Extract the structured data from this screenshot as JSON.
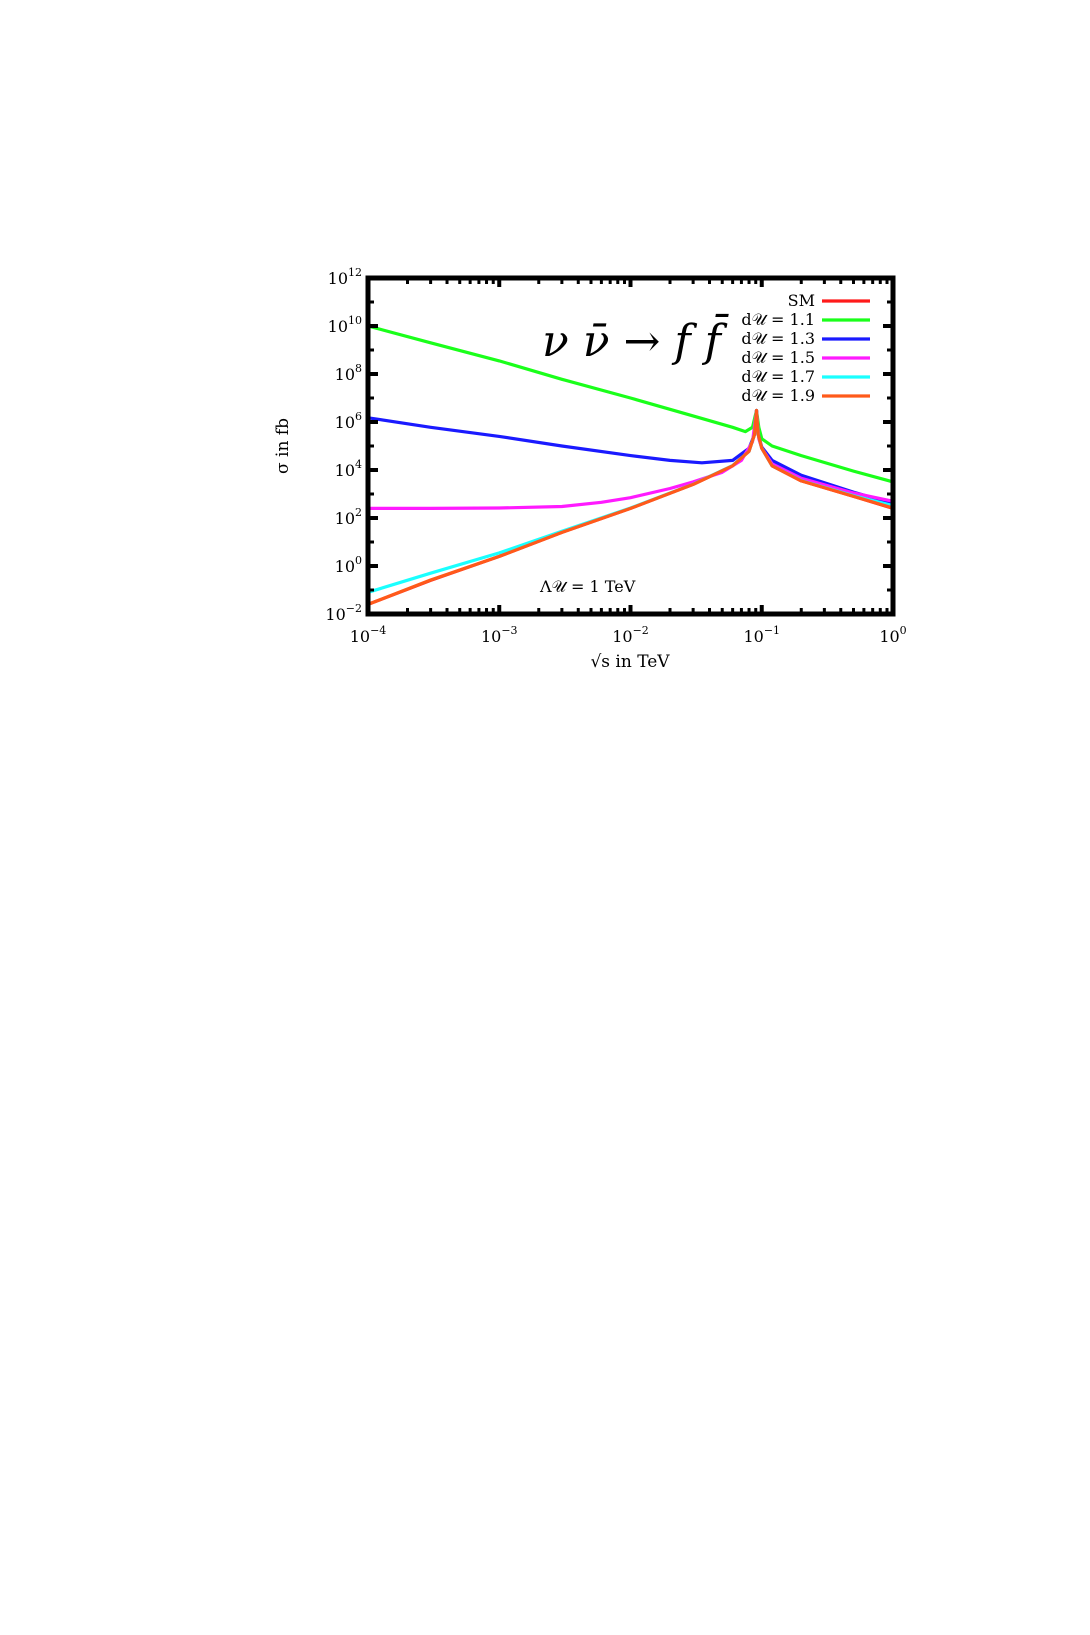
{
  "chart_data": {
    "type": "line",
    "x_scale": "log",
    "y_scale": "log",
    "xlim": [
      0.0001,
      1
    ],
    "ylim": [
      0.01,
      1000000000000
    ],
    "grid": false,
    "legend_position": "top-right",
    "xlabel": "√s in TeV",
    "ylabel": "σ in fb",
    "x_ticks": [
      {
        "value": 0.0001,
        "base": "10",
        "exp": "−4"
      },
      {
        "value": 0.001,
        "base": "10",
        "exp": "−3"
      },
      {
        "value": 0.01,
        "base": "10",
        "exp": "−2"
      },
      {
        "value": 0.1,
        "base": "10",
        "exp": "−1"
      },
      {
        "value": 1,
        "base": "10",
        "exp": "0"
      }
    ],
    "y_ticks": [
      {
        "value": 0.01,
        "base": "10",
        "exp": "−2"
      },
      {
        "value": 1,
        "base": "10",
        "exp": "0"
      },
      {
        "value": 100,
        "base": "10",
        "exp": "2"
      },
      {
        "value": 10000,
        "base": "10",
        "exp": "4"
      },
      {
        "value": 1000000,
        "base": "10",
        "exp": "6"
      },
      {
        "value": 100000000,
        "base": "10",
        "exp": "8"
      },
      {
        "value": 10000000000,
        "base": "10",
        "exp": "10"
      },
      {
        "value": 1000000000000,
        "base": "10",
        "exp": "12"
      }
    ],
    "annotations": {
      "process": "ν ν̄ → f f̄",
      "lambda": "Λ𝒰 = 1 TeV"
    },
    "series": [
      {
        "name": "SM",
        "color": "#ff1a1a",
        "x": [
          0.0001,
          0.0003,
          0.001,
          0.003,
          0.01,
          0.03,
          0.06,
          0.08,
          0.088,
          0.0912,
          0.094,
          0.1,
          0.12,
          0.2,
          0.5,
          1
        ],
        "y": [
          0.025,
          0.25,
          2.5,
          25,
          250,
          2500,
          15000,
          60000,
          300000,
          3000000,
          300000,
          80000,
          15000,
          3500,
          800,
          250
        ]
      },
      {
        "name": "d𝒰 = 1.1",
        "color": "#1aff1a",
        "x": [
          0.0001,
          0.0003,
          0.001,
          0.003,
          0.01,
          0.03,
          0.06,
          0.075,
          0.085,
          0.0912,
          0.095,
          0.1,
          0.12,
          0.2,
          0.5,
          1
        ],
        "y": [
          10000000000,
          2000000000,
          350000000,
          60000000,
          10000000,
          1800000,
          600000,
          400000,
          600000,
          3000000,
          600000,
          200000,
          100000,
          40000,
          9000,
          3200
        ]
      },
      {
        "name": "d𝒰 = 1.3",
        "color": "#1a1aff",
        "x": [
          0.0001,
          0.0003,
          0.001,
          0.003,
          0.01,
          0.02,
          0.035,
          0.06,
          0.08,
          0.088,
          0.0912,
          0.094,
          0.1,
          0.12,
          0.2,
          0.5,
          1
        ],
        "y": [
          1500000,
          600000,
          250000,
          100000,
          40000,
          25000,
          20000,
          25000,
          80000,
          300000,
          3000000,
          300000,
          90000,
          25000,
          6000,
          1200,
          400
        ]
      },
      {
        "name": "d𝒰 = 1.5",
        "color": "#ff1aff",
        "x": [
          0.0001,
          0.0003,
          0.001,
          0.003,
          0.006,
          0.01,
          0.02,
          0.03,
          0.05,
          0.07,
          0.085,
          0.0912,
          0.095,
          0.1,
          0.12,
          0.2,
          0.5,
          1
        ],
        "y": [
          250,
          250,
          260,
          300,
          450,
          700,
          1700,
          3200,
          8000,
          25000,
          150000,
          3000000,
          200000,
          80000,
          18000,
          4500,
          1100,
          500
        ]
      },
      {
        "name": "d𝒰 = 1.7",
        "color": "#1affff",
        "x": [
          0.0001,
          0.0003,
          0.001,
          0.003,
          0.01,
          0.03,
          0.06,
          0.08,
          0.088,
          0.0912,
          0.094,
          0.1,
          0.12,
          0.2,
          0.5,
          1
        ],
        "y": [
          0.08,
          0.5,
          3.5,
          28,
          260,
          2550,
          15200,
          60000,
          300000,
          3000000,
          300000,
          80000,
          15000,
          3600,
          850,
          330
        ]
      },
      {
        "name": "d𝒰 = 1.9",
        "color": "#ff5a1a",
        "x": [
          0.0001,
          0.0003,
          0.001,
          0.003,
          0.01,
          0.03,
          0.06,
          0.08,
          0.088,
          0.0912,
          0.094,
          0.1,
          0.12,
          0.2,
          0.5,
          1
        ],
        "y": [
          0.025,
          0.26,
          2.5,
          25,
          250,
          2500,
          15000,
          60000,
          300000,
          3000000,
          300000,
          80000,
          15000,
          3500,
          800,
          260
        ]
      }
    ]
  }
}
